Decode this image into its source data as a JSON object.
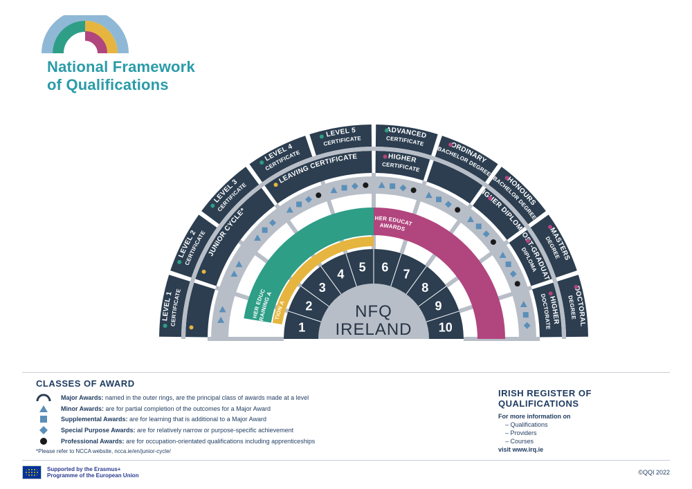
{
  "title1": "National Framework",
  "title2": "of Qualifications",
  "center1": "NFQ",
  "center2": "IRELAND",
  "colors": {
    "dark": "#2c3e50",
    "lightgrey": "#b8bec7",
    "grey": "#9aa1ab",
    "teal": "#2a9ba8",
    "green": "#2e9e87",
    "gold": "#e6b53f",
    "magenta": "#b1457e",
    "lightblue": "#8fb8d6",
    "midblue": "#5b8fb9",
    "white": "#ffffff"
  },
  "radii": {
    "r0": 80,
    "r1": 130,
    "r2a": 150,
    "r2b": 190,
    "r3a": 210,
    "r3b": 235,
    "r4a": 240,
    "r4b": 272,
    "r5a": 278,
    "r5b": 310
  },
  "levels": [
    "1",
    "2",
    "3",
    "4",
    "5",
    "6",
    "7",
    "8",
    "9",
    "10"
  ],
  "outerA": [
    {
      "t1": "LEVEL 1",
      "t2": "CERTIFICATE",
      "span": 1,
      "dot": "#2e9e87"
    },
    {
      "t1": "LEVEL 2",
      "t2": "CERTIFICATE",
      "span": 1,
      "dot": "#2e9e87"
    },
    {
      "t1": "LEVEL 3",
      "t2": "CERTIFICATE",
      "span": 1,
      "dot": "#2e9e87"
    },
    {
      "t1": "LEVEL 4",
      "t2": "CERTIFICATE",
      "span": 1,
      "dot": "#2e9e87"
    },
    {
      "t1": "LEVEL 5",
      "t2": "CERTIFICATE",
      "span": 1,
      "dot": "#2e9e87"
    },
    {
      "t1": "ADVANCED",
      "t2": "CERTIFICATE",
      "span": 1,
      "dot": "#2e9e87"
    },
    {
      "t1": "ORDINARY",
      "t2": "BACHELOR DEGREE",
      "span": 1,
      "dot": "#b1457e"
    },
    {
      "t1": "HONOURS",
      "t2": "BACHELOR DEGREE",
      "span": 1,
      "dot": "#b1457e"
    },
    {
      "t1": "MASTERS",
      "t2": "DEGREE",
      "span": 1,
      "dot": "#b1457e"
    },
    {
      "t1": "DOCTORAL",
      "t2": "DEGREE",
      "span": 1,
      "dot": "#b1457e"
    }
  ],
  "outerB": [
    {
      "t1": "",
      "t2": "",
      "startSeg": 0,
      "span": 1,
      "dot": "#e6b53f"
    },
    {
      "t1": "JUNIOR CYCLE*",
      "t2": "",
      "startSeg": 1,
      "span": 2,
      "dot": "#e6b53f"
    },
    {
      "t1": "LEAVING CERTIFICATE",
      "t2": "",
      "startSeg": 3,
      "span": 2,
      "dot": "#e6b53f"
    },
    {
      "t1": "HIGHER",
      "t2": "CERTIFICATE",
      "startSeg": 5,
      "span": 1,
      "dot": "#b1457e"
    },
    {
      "t1": "",
      "t2": "",
      "startSeg": 6,
      "span": 1
    },
    {
      "t1": "HIGHER DIPLOMA",
      "t2": "",
      "startSeg": 7,
      "span": 1,
      "dot": "#b1457e"
    },
    {
      "t1": "POST-GRADUATE",
      "t2": "DIPLOMA",
      "startSeg": 8,
      "span": 1,
      "dot": "#b1457e"
    },
    {
      "t1": "HIGHER",
      "t2": "DOCTORATE",
      "startSeg": 9,
      "span": 1,
      "dot": "#b1457e"
    }
  ],
  "markerRing": {
    "segs": [
      {
        "i": 0,
        "m": [
          "tri",
          "tri"
        ]
      },
      {
        "i": 1,
        "m": [
          "tri",
          "tri"
        ]
      },
      {
        "i": 2,
        "m": [
          "tri",
          "sq",
          "dia"
        ]
      },
      {
        "i": 3,
        "m": [
          "tri",
          "sq",
          "dia",
          "dot"
        ]
      },
      {
        "i": 4,
        "m": [
          "tri",
          "sq",
          "dia",
          "dot"
        ]
      },
      {
        "i": 5,
        "m": [
          "tri",
          "sq",
          "dia",
          "dot"
        ]
      },
      {
        "i": 6,
        "m": [
          "tri",
          "sq",
          "dia",
          "dot"
        ]
      },
      {
        "i": 7,
        "m": [
          "tri",
          "sq",
          "dia",
          "dot"
        ]
      },
      {
        "i": 8,
        "m": [
          "tri",
          "sq",
          "dia",
          "dot"
        ]
      },
      {
        "i": 9,
        "m": [
          "tri",
          "sq",
          "dia"
        ]
      }
    ]
  },
  "colorArcs": [
    {
      "ring": "r2a_r2b",
      "start": 0.5,
      "end": 5,
      "color": "#2e9e87",
      "label": "FURTHER EDUCATION\nAND TRAINING\nAWARDS"
    },
    {
      "ring": "r2a_r2b",
      "start": 5,
      "end": 10,
      "color": "#b1457e",
      "label": "HIGHER EDUCATION\nAWARDS"
    }
  ],
  "goldArc": {
    "start": 0.5,
    "end": 5,
    "color": "#e6b53f",
    "label": "GENERAL\nEDUCATION\nAWARDS"
  },
  "legend": {
    "title": "CLASSES OF AWARD",
    "rows": [
      {
        "sym": "arc",
        "b": "Major Awards:",
        "t": "named in the outer rings, are the principal class of awards made at a level"
      },
      {
        "sym": "tri",
        "b": "Minor Awards:",
        "t": "are for partial completion of the outcomes for a Major Award"
      },
      {
        "sym": "sq",
        "b": "Supplemental Awards:",
        "t": "are for learning that is additional to a Major Award"
      },
      {
        "sym": "dia",
        "b": "Special Purpose Awards:",
        "t": "are for relatively narrow or purpose-specific achievement"
      },
      {
        "sym": "dot",
        "b": "Professional Awards:",
        "t": "are for occupation-orientated qualifications including apprenticeships"
      }
    ],
    "note": "*Please refer to NCCA website, ncca.ie/en/junior-cycle/"
  },
  "irq": {
    "title": "IRISH REGISTER OF QUALIFICATIONS",
    "lead": "For more information on",
    "items": [
      "Qualifications",
      "Providers",
      "Courses"
    ],
    "visit": "visit www.irq.ie"
  },
  "footer": {
    "eu": "Supported by the Erasmus+\nProgramme of the European Union",
    "copy": "©QQI 2022"
  }
}
